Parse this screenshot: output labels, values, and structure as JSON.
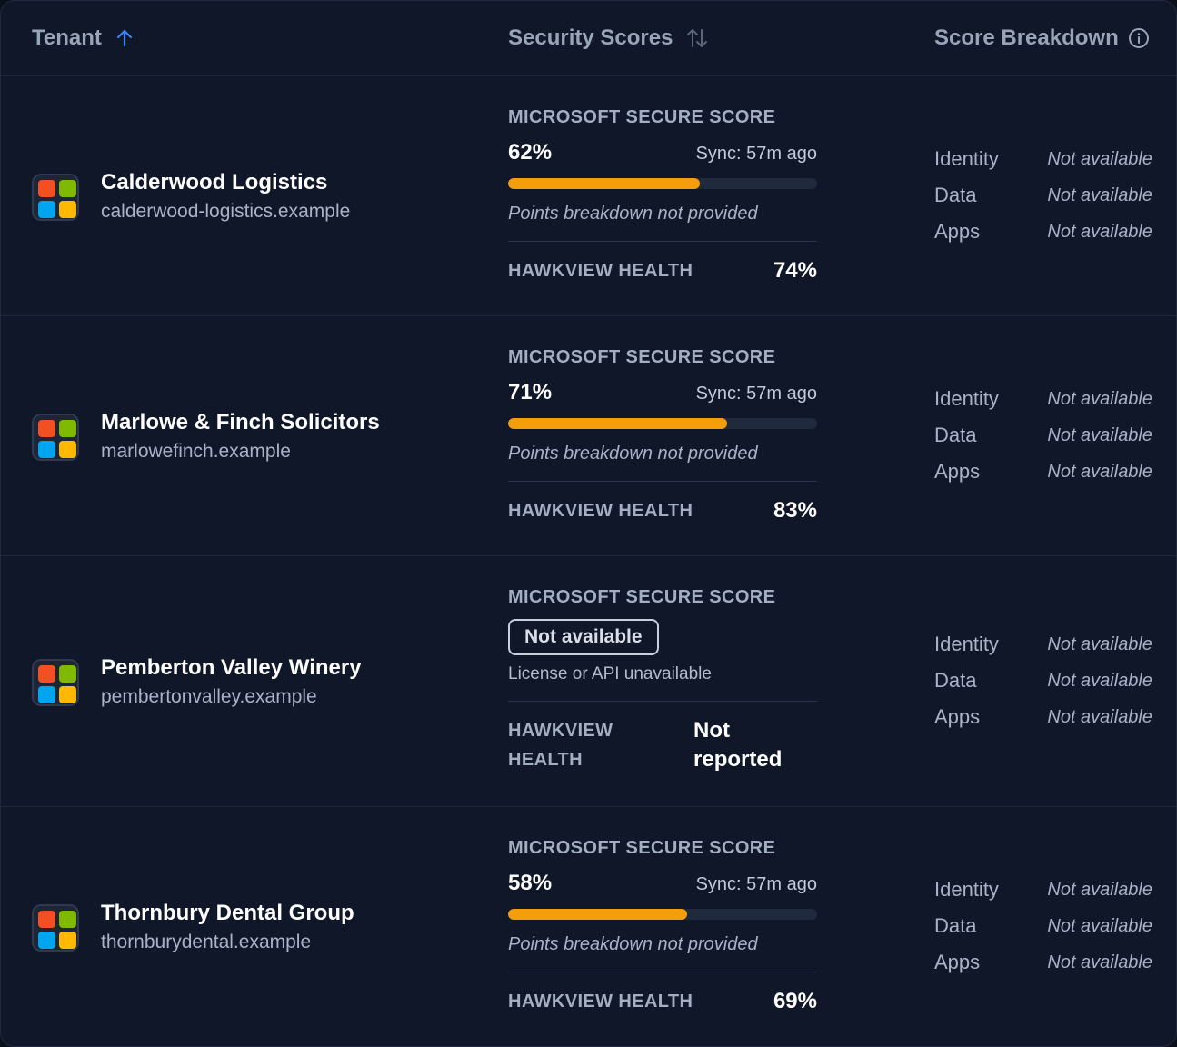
{
  "header": {
    "tenant_label": "Tenant",
    "scores_label": "Security Scores",
    "breakdown_label": "Score Breakdown"
  },
  "colors": {
    "background": "#0f1729",
    "bar_fill": "#f59e0b",
    "bar_track": "#1f2a3c",
    "sort_active": "#3b82f6"
  },
  "icons": {
    "sort_active": "arrow-up-icon",
    "sort_inactive": "sort-arrows-icon",
    "info": "info-icon",
    "tenant_logo": "microsoft-logo-icon"
  },
  "rows": [
    {
      "name": "Calderwood Logistics",
      "domain": "calderwood-logistics.example",
      "ms_label": "MICROSOFT SECURE SCORE",
      "ms_score": "62%",
      "ms_fraction": 0.62,
      "sync": "Sync: 57m ago",
      "note": "Points breakdown not provided",
      "health_label": "HAWKVIEW HEALTH",
      "health_value": "74%",
      "breakdown": [
        {
          "key": "Identity",
          "value": "Not available"
        },
        {
          "key": "Data",
          "value": "Not available"
        },
        {
          "key": "Apps",
          "value": "Not available"
        }
      ]
    },
    {
      "name": "Marlowe & Finch Solicitors",
      "domain": "marlowefinch.example",
      "ms_label": "MICROSOFT SECURE SCORE",
      "ms_score": "71%",
      "ms_fraction": 0.71,
      "sync": "Sync: 57m ago",
      "note": "Points breakdown not provided",
      "health_label": "HAWKVIEW HEALTH",
      "health_value": "83%",
      "breakdown": [
        {
          "key": "Identity",
          "value": "Not available"
        },
        {
          "key": "Data",
          "value": "Not available"
        },
        {
          "key": "Apps",
          "value": "Not available"
        }
      ]
    },
    {
      "name": "Pemberton Valley Winery",
      "domain": "pembertonvalley.example",
      "ms_label": "MICROSOFT SECURE SCORE",
      "ms_badge": "Not available",
      "ms_sub": "License or API unavailable",
      "health_label_line1": "HAWKVIEW",
      "health_label_line2": "HEALTH",
      "health_value_line1": "Not",
      "health_value_line2": "reported",
      "breakdown": [
        {
          "key": "Identity",
          "value": "Not available"
        },
        {
          "key": "Data",
          "value": "Not available"
        },
        {
          "key": "Apps",
          "value": "Not available"
        }
      ]
    },
    {
      "name": "Thornbury Dental Group",
      "domain": "thornburydental.example",
      "ms_label": "MICROSOFT SECURE SCORE",
      "ms_score": "58%",
      "ms_fraction": 0.58,
      "sync": "Sync: 57m ago",
      "note": "Points breakdown not provided",
      "health_label": "HAWKVIEW HEALTH",
      "health_value": "69%",
      "breakdown": [
        {
          "key": "Identity",
          "value": "Not available"
        },
        {
          "key": "Data",
          "value": "Not available"
        },
        {
          "key": "Apps",
          "value": "Not available"
        }
      ]
    }
  ]
}
